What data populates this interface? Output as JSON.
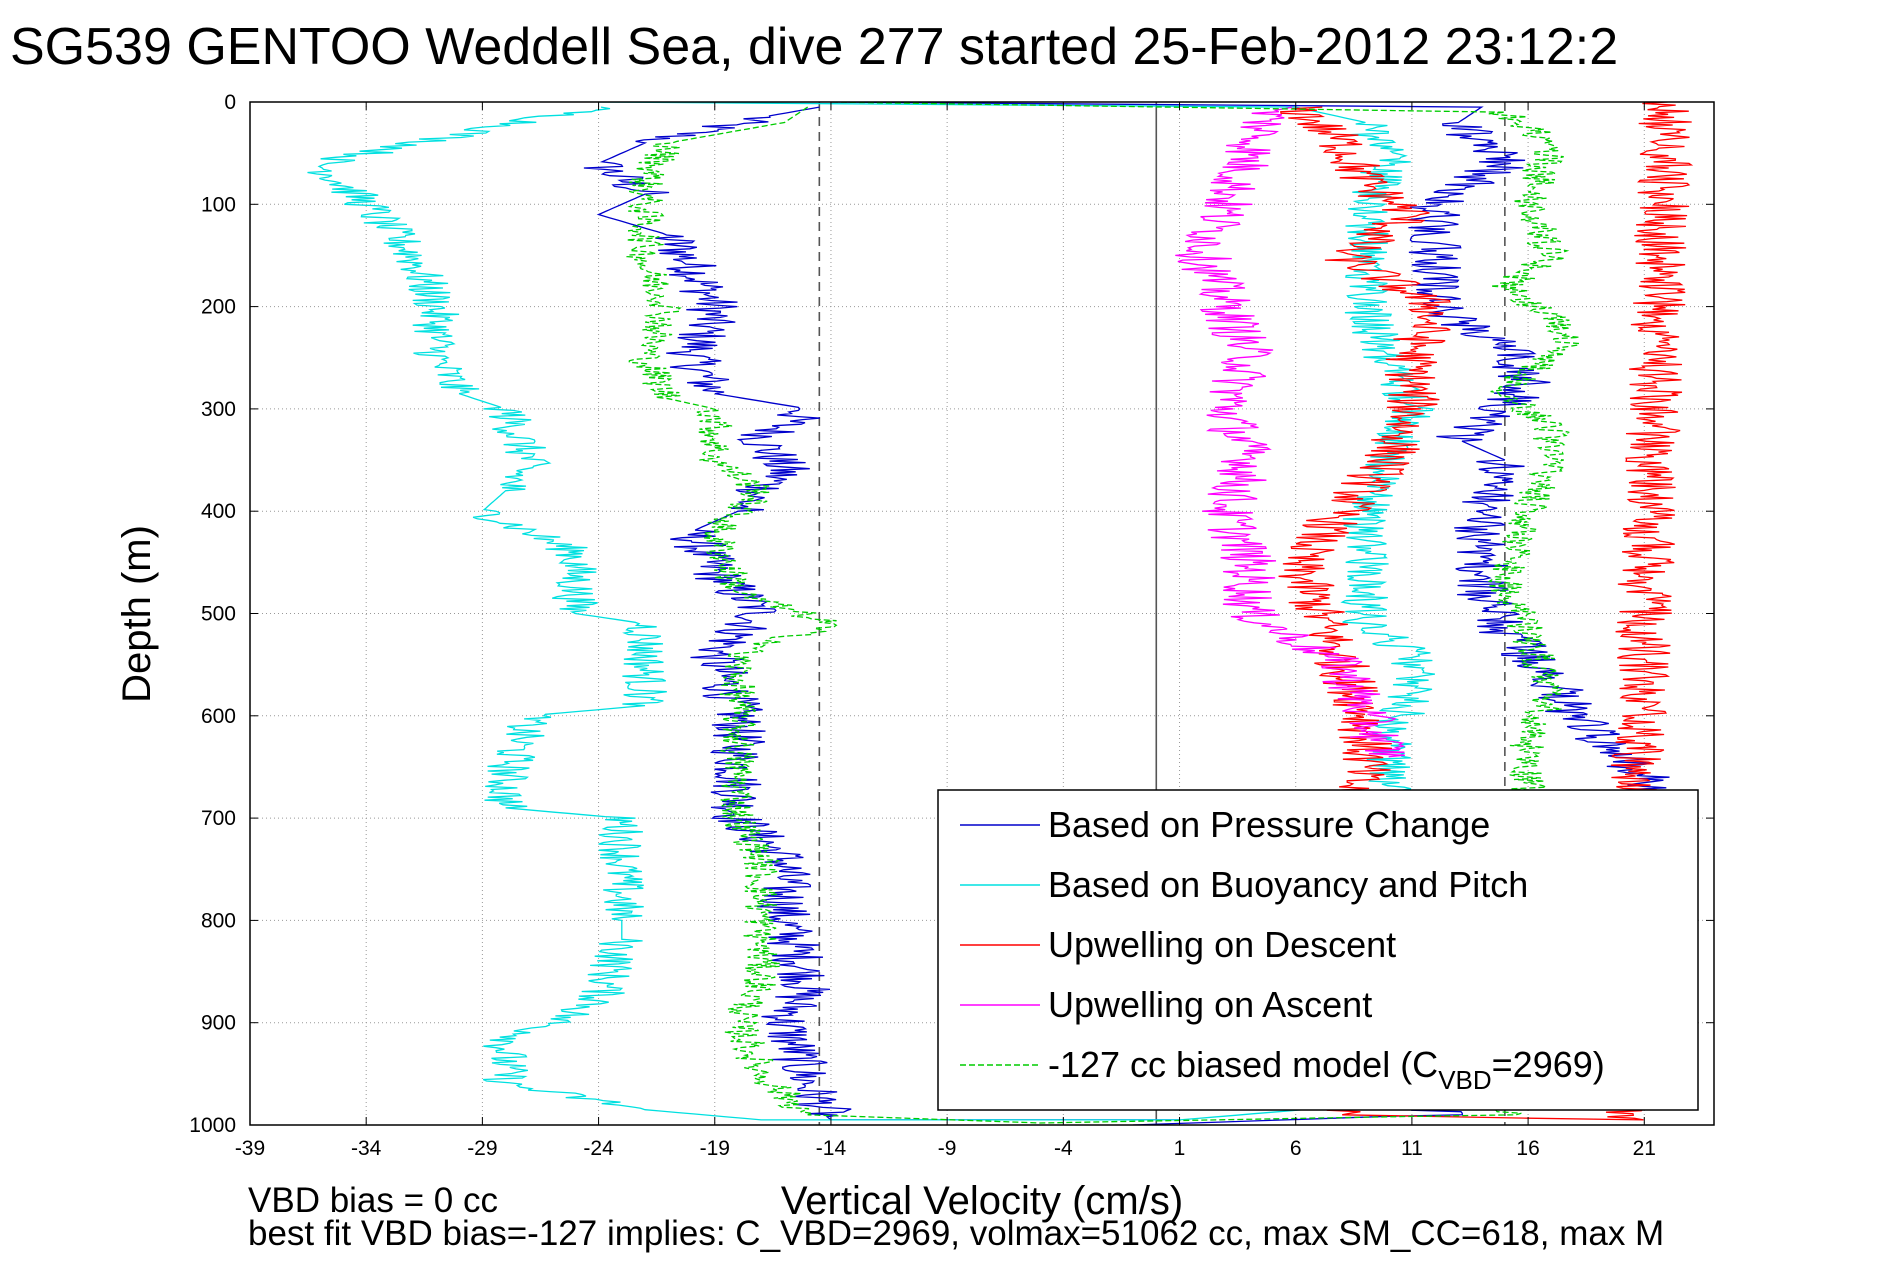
{
  "chart_data": {
    "type": "line",
    "title": "SG539 GENTOO Weddell Sea, dive 277 started 25-Feb-2012 23:12:2",
    "xlabel": "Vertical Velocity (cm/s)",
    "ylabel": "Depth (m)",
    "xlim": [
      -39,
      24
    ],
    "ylim": [
      1000,
      0
    ],
    "y_reversed": true,
    "xticks": [
      -39,
      -34,
      -29,
      -24,
      -19,
      -14,
      -9,
      -4,
      1,
      6,
      11,
      16,
      21
    ],
    "yticks": [
      0,
      100,
      200,
      300,
      400,
      500,
      600,
      700,
      800,
      900,
      1000
    ],
    "grid": true,
    "legend_position": "bottom-right",
    "reference_lines": [
      {
        "orientation": "vertical",
        "x": -14.5,
        "style": "dashed",
        "color": "#555555"
      },
      {
        "orientation": "vertical",
        "x": 0,
        "style": "solid",
        "color": "#555555"
      },
      {
        "orientation": "vertical",
        "x": 15,
        "style": "dashed",
        "color": "#555555"
      }
    ],
    "series": [
      {
        "name": "Based on Pressure Change",
        "color": "#0000cc",
        "style": "solid",
        "noise": 1.2,
        "points": [
          [
            -14.5,
            5
          ],
          [
            -17,
            15
          ],
          [
            -22,
            40
          ],
          [
            -24,
            60
          ],
          [
            -22,
            90
          ],
          [
            -24,
            110
          ],
          [
            -21,
            130
          ],
          [
            -20,
            160
          ],
          [
            -19,
            200
          ],
          [
            -20,
            250
          ],
          [
            -19,
            285
          ],
          [
            -15,
            300
          ],
          [
            -17,
            330
          ],
          [
            -16,
            360
          ],
          [
            -18,
            400
          ],
          [
            -20,
            420
          ],
          [
            -19,
            460
          ],
          [
            -17,
            500
          ],
          [
            -19,
            540
          ],
          [
            -18,
            600
          ],
          [
            -18,
            700
          ],
          [
            -16,
            740
          ],
          [
            -16,
            800
          ],
          [
            -15,
            860
          ],
          [
            -16,
            900
          ],
          [
            -15,
            960
          ],
          [
            -14,
            995
          ],
          [
            1,
            995
          ]
        ],
        "points_ascent": [
          [
            -1,
            1000
          ],
          [
            12,
            990
          ],
          [
            21,
            700
          ],
          [
            21,
            660
          ],
          [
            18,
            600
          ],
          [
            17,
            560
          ],
          [
            15,
            520
          ],
          [
            14,
            480
          ],
          [
            14,
            440
          ],
          [
            14,
            400
          ],
          [
            15,
            350
          ],
          [
            13,
            330
          ],
          [
            16,
            280
          ],
          [
            15,
            240
          ],
          [
            12,
            200
          ],
          [
            12,
            150
          ],
          [
            12,
            100
          ],
          [
            15,
            60
          ],
          [
            13,
            20
          ],
          [
            14,
            5
          ],
          [
            -14,
            0
          ]
        ]
      },
      {
        "name": "Based on Buoyancy and Pitch",
        "color": "#00e0e0",
        "style": "solid",
        "noise": 1.0,
        "points": [
          [
            -24,
            5
          ],
          [
            -36,
            60
          ],
          [
            -34,
            100
          ],
          [
            -32,
            150
          ],
          [
            -31,
            200
          ],
          [
            -31,
            250
          ],
          [
            -30,
            285
          ],
          [
            -28,
            300
          ],
          [
            -27,
            350
          ],
          [
            -28,
            380
          ],
          [
            -29,
            400
          ],
          [
            -25,
            440
          ],
          [
            -25,
            500
          ],
          [
            -22,
            510
          ],
          [
            -22,
            590
          ],
          [
            -27,
            600
          ],
          [
            -28,
            660
          ],
          [
            -28,
            690
          ],
          [
            -23,
            700
          ],
          [
            -23,
            800
          ],
          [
            -23,
            820
          ],
          [
            -24,
            880
          ],
          [
            -28,
            920
          ],
          [
            -28,
            960
          ],
          [
            -22,
            985
          ],
          [
            -17,
            995
          ],
          [
            1,
            995
          ]
        ],
        "points_ascent": [
          [
            1,
            995
          ],
          [
            9,
            980
          ],
          [
            10,
            700
          ],
          [
            10,
            620
          ],
          [
            11,
            580
          ],
          [
            11,
            540
          ],
          [
            9,
            510
          ],
          [
            9,
            450
          ],
          [
            9,
            400
          ],
          [
            10,
            350
          ],
          [
            11,
            300
          ],
          [
            10,
            260
          ],
          [
            9,
            200
          ],
          [
            9,
            150
          ],
          [
            9,
            100
          ],
          [
            10,
            60
          ],
          [
            9,
            20
          ],
          [
            6,
            5
          ],
          [
            -24,
            0
          ]
        ]
      },
      {
        "name": "Upwelling on Descent",
        "color": "#ff0000",
        "style": "solid",
        "noise": 1.2,
        "points": [
          [
            6,
            5
          ],
          [
            8,
            40
          ],
          [
            9,
            80
          ],
          [
            11,
            110
          ],
          [
            8,
            150
          ],
          [
            12,
            200
          ],
          [
            11,
            250
          ],
          [
            11,
            300
          ],
          [
            10,
            350
          ],
          [
            8,
            400
          ],
          [
            6,
            450
          ],
          [
            7,
            500
          ],
          [
            8,
            550
          ],
          [
            9,
            600
          ],
          [
            9,
            650
          ],
          [
            8,
            680
          ],
          [
            8,
            990
          ],
          [
            20,
            995
          ],
          [
            22,
            0
          ]
        ]
      },
      {
        "name": "Upwelling on Ascent",
        "color": "#ff00ff",
        "style": "solid",
        "noise": 1.2,
        "points": [
          [
            5,
            5
          ],
          [
            4,
            50
          ],
          [
            3,
            100
          ],
          [
            2,
            150
          ],
          [
            3,
            200
          ],
          [
            4,
            250
          ],
          [
            3,
            300
          ],
          [
            4,
            350
          ],
          [
            3,
            400
          ],
          [
            4,
            450
          ],
          [
            4,
            500
          ],
          [
            8,
            550
          ],
          [
            9,
            600
          ],
          [
            10,
            640
          ]
        ]
      },
      {
        "name": "-127 cc biased model (C_VBD=2969)",
        "color": "#00cc00",
        "style": "dashed",
        "noise": 0.8,
        "points": [
          [
            -15,
            5
          ],
          [
            -16,
            20
          ],
          [
            -21,
            40
          ],
          [
            -22,
            80
          ],
          [
            -22,
            120
          ],
          [
            -22,
            160
          ],
          [
            -21,
            200
          ],
          [
            -22,
            250
          ],
          [
            -21,
            290
          ],
          [
            -19,
            300
          ],
          [
            -19,
            350
          ],
          [
            -17,
            380
          ],
          [
            -19,
            420
          ],
          [
            -18,
            480
          ],
          [
            -14,
            510
          ],
          [
            -18,
            540
          ],
          [
            -18,
            600
          ],
          [
            -18,
            700
          ],
          [
            -17,
            740
          ],
          [
            -17,
            800
          ],
          [
            -17,
            860
          ],
          [
            -18,
            900
          ],
          [
            -17,
            950
          ],
          [
            -15,
            990
          ],
          [
            -5,
            998
          ],
          [
            15,
            990
          ],
          [
            16,
            700
          ],
          [
            16,
            620
          ],
          [
            17,
            580
          ],
          [
            16,
            520
          ],
          [
            15,
            470
          ],
          [
            16,
            400
          ],
          [
            17,
            350
          ],
          [
            17,
            320
          ],
          [
            15,
            280
          ],
          [
            18,
            230
          ],
          [
            15,
            180
          ],
          [
            17,
            150
          ],
          [
            16,
            100
          ],
          [
            17,
            40
          ],
          [
            15,
            10
          ],
          [
            -14,
            0
          ]
        ]
      }
    ],
    "legend": [
      {
        "label": "Based on Pressure Change",
        "color": "#0000cc",
        "style": "solid"
      },
      {
        "label": "Based on Buoyancy and Pitch",
        "color": "#00e0e0",
        "style": "solid"
      },
      {
        "label": "Upwelling on Descent",
        "color": "#ff0000",
        "style": "solid"
      },
      {
        "label": "Upwelling on Ascent",
        "color": "#ff00ff",
        "style": "solid"
      },
      {
        "label": "-127 cc biased model (C",
        "subscript": "VBD",
        "suffix": "=2969)",
        "color": "#00cc00",
        "style": "dashed"
      }
    ],
    "annotations": {
      "line1": "VBD bias = 0 cc",
      "line2": "best fit VBD bias=-127 implies: C_VBD=2969, volmax=51062 cc, max SM_CC=618, max M"
    }
  }
}
